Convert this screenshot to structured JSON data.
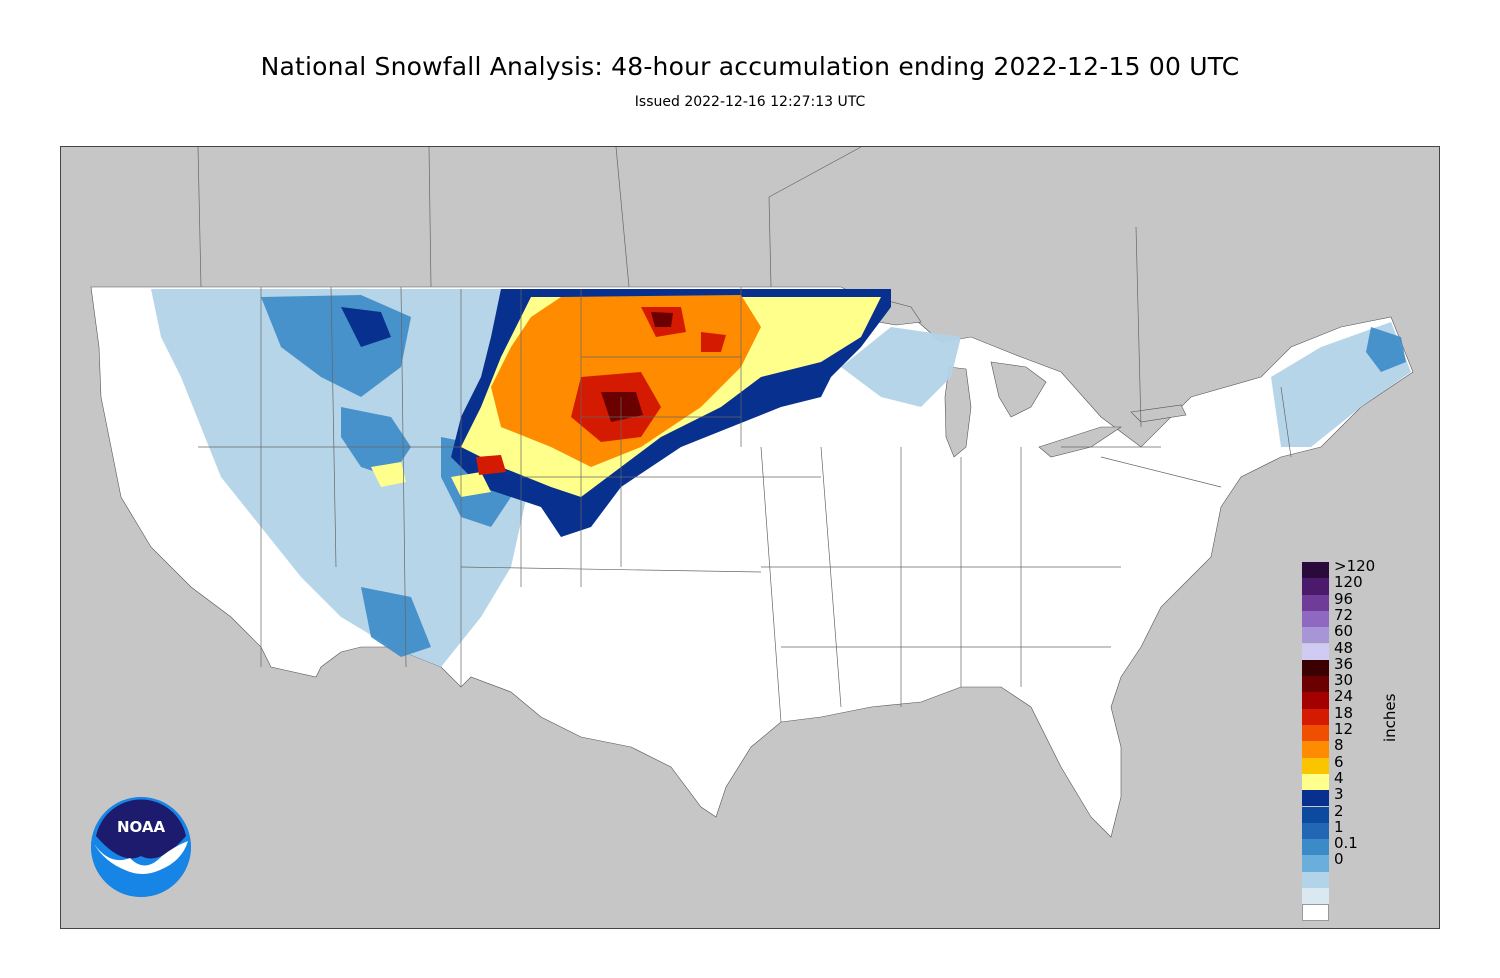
{
  "header": {
    "title": "National Snowfall Analysis: 48-hour accumulation ending 2022-12-15 00 UTC",
    "subtitle": "Issued 2022-12-16 12:27:13 UTC"
  },
  "legend": {
    "units": "inches",
    "bins": [
      {
        "label": ">120",
        "color": "#2a0a3a"
      },
      {
        "label": "120",
        "color": "#4b1a6b"
      },
      {
        "label": "96",
        "color": "#6f3c9a"
      },
      {
        "label": "72",
        "color": "#8f68c0"
      },
      {
        "label": "60",
        "color": "#a795d8"
      },
      {
        "label": "48",
        "color": "#cfcbf2"
      },
      {
        "label": "36",
        "color": "#3b0000"
      },
      {
        "label": "30",
        "color": "#6b0000"
      },
      {
        "label": "24",
        "color": "#a30000"
      },
      {
        "label": "18",
        "color": "#d41a00"
      },
      {
        "label": "12",
        "color": "#f04e00"
      },
      {
        "label": "8",
        "color": "#ff8c00"
      },
      {
        "label": "6",
        "color": "#fbc400"
      },
      {
        "label": "4",
        "color": "#ffff8c"
      },
      {
        "label": "3",
        "color": "#08308e"
      },
      {
        "label": "2",
        "color": "#0c4aa0"
      },
      {
        "label": "1",
        "color": "#2167b3"
      },
      {
        "label": "0.1",
        "color": "#3b8bc8"
      },
      {
        "label": "0",
        "color": "#6aaedb"
      },
      {
        "label": "",
        "color": "#b3d3e8"
      },
      {
        "label": "",
        "color": "#dae8f2"
      },
      {
        "label": "",
        "color": "#ffffff"
      }
    ]
  },
  "logo": {
    "text": "NOAA"
  },
  "colors": {
    "background": "#c6c6c6",
    "land": "#ffffff",
    "water": "#c6c6c6"
  }
}
